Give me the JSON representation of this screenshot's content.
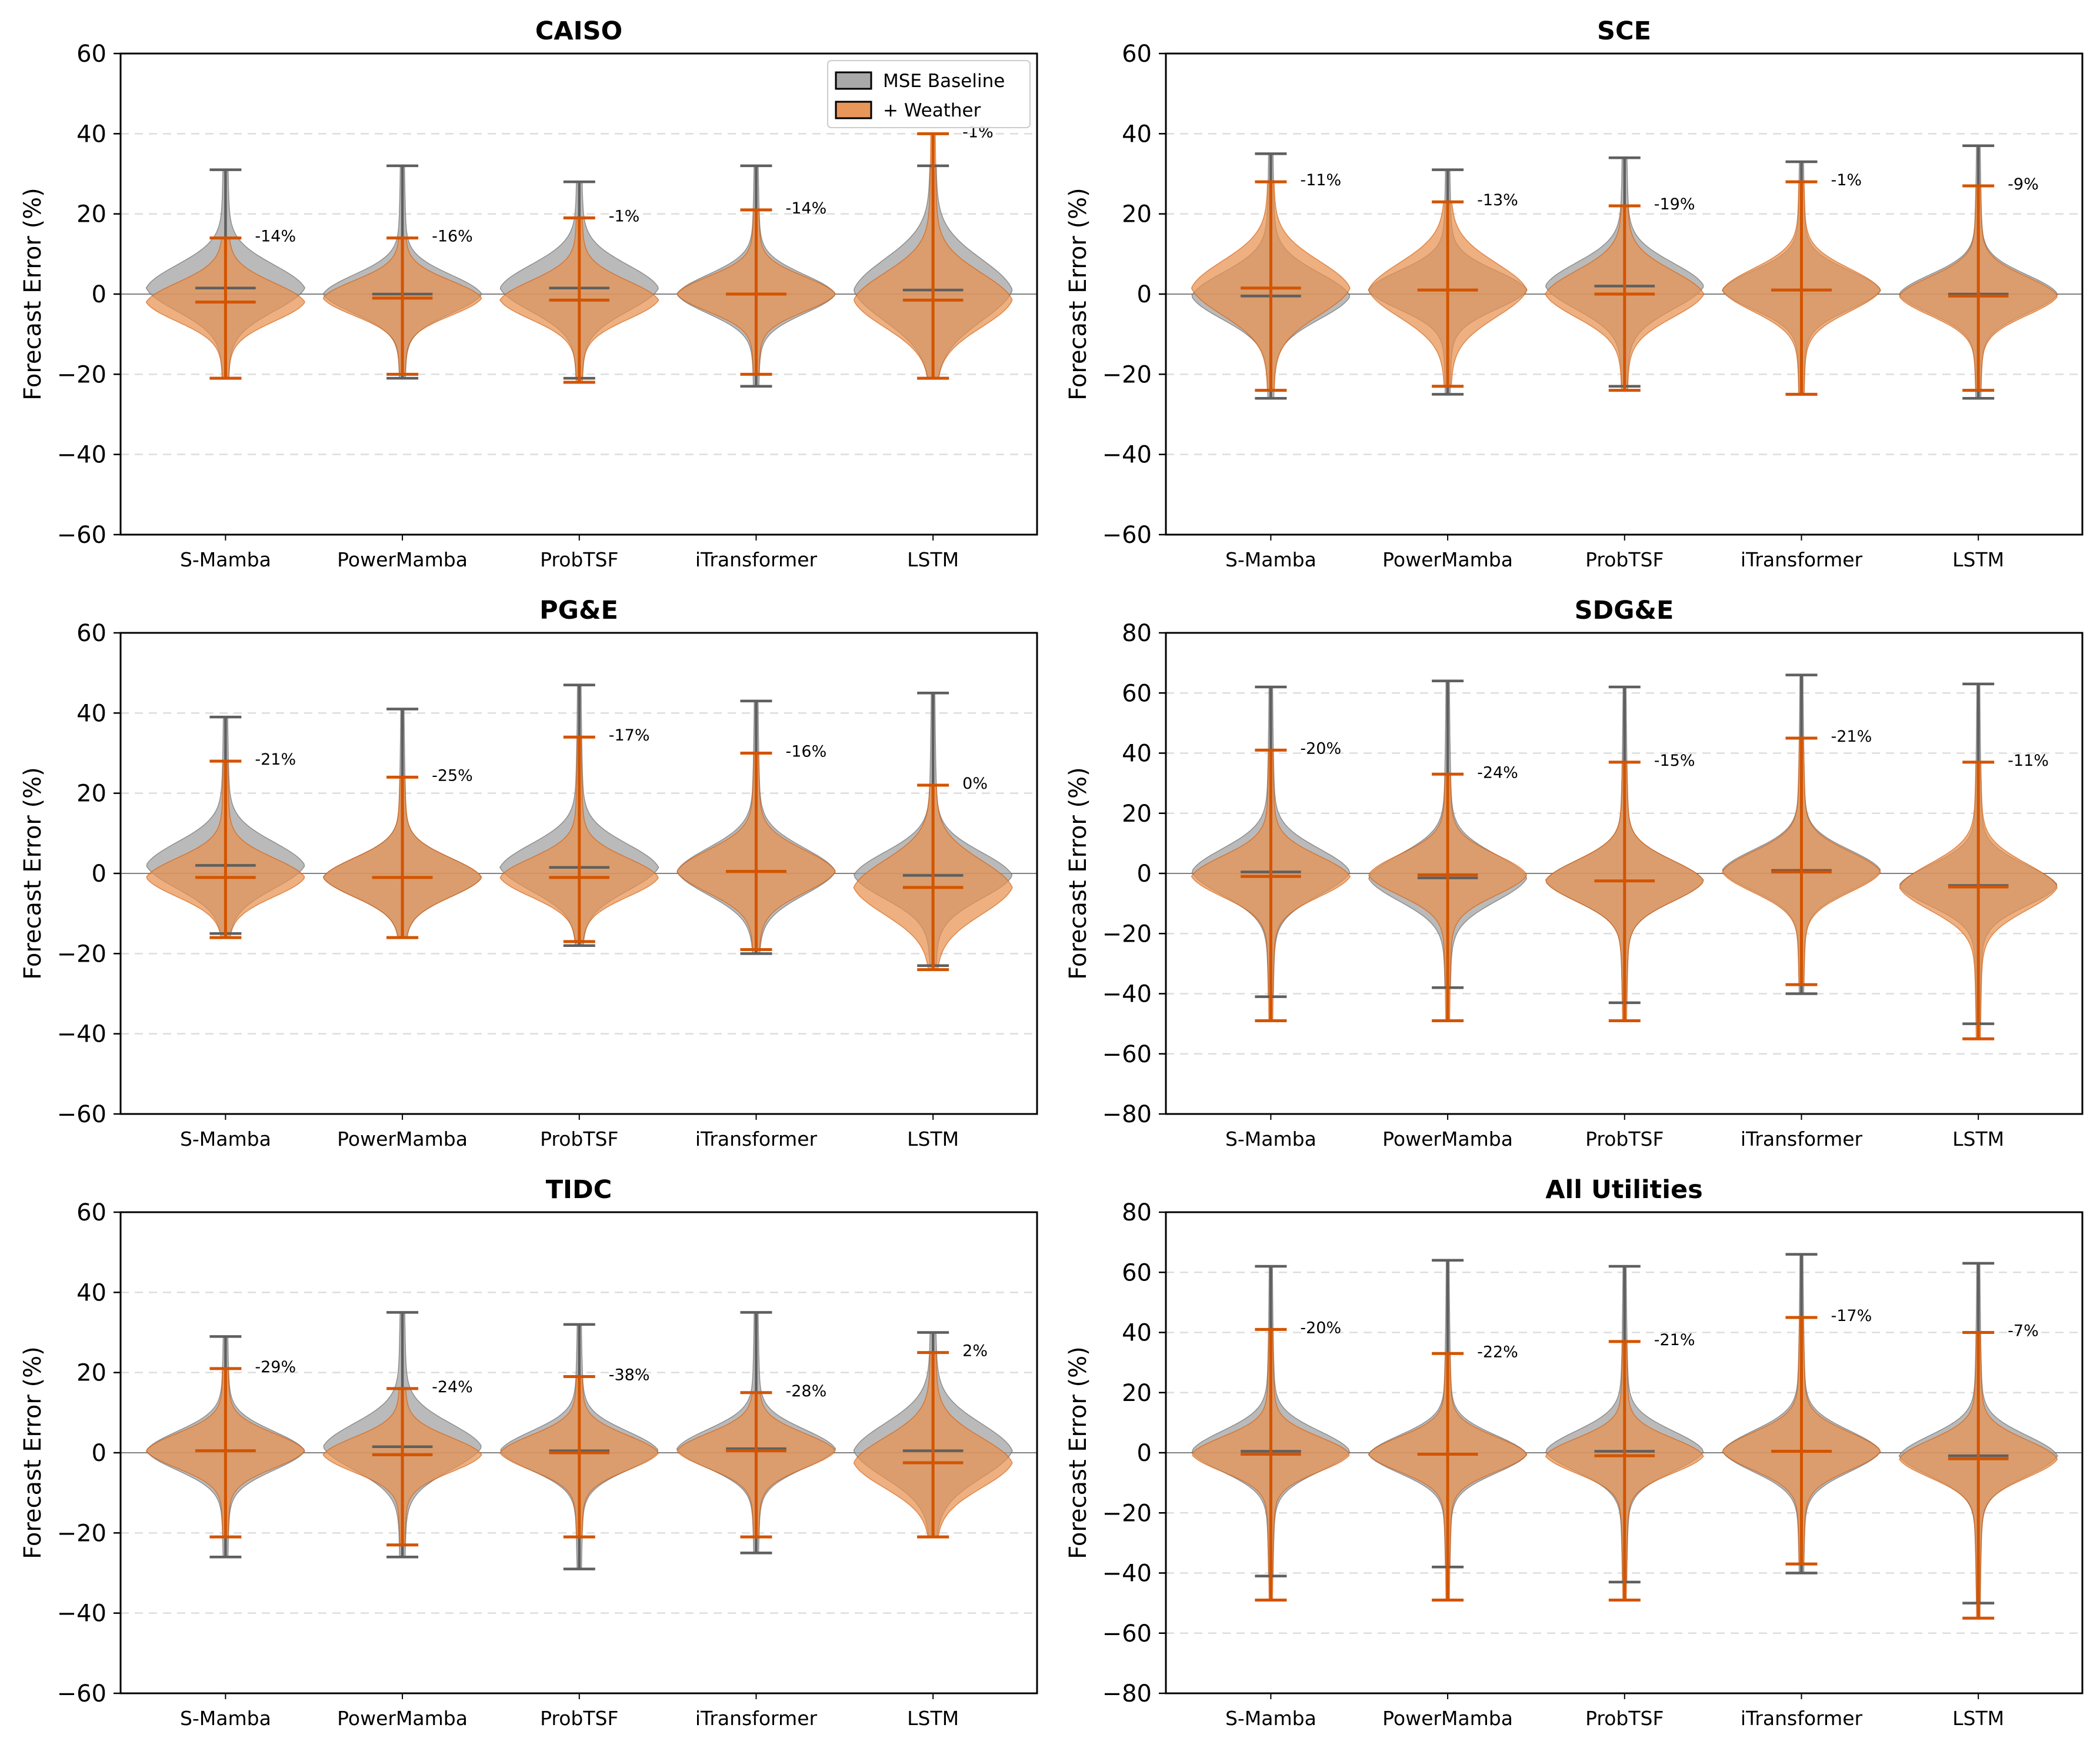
{
  "figure": {
    "legend": [
      {
        "label": "MSE Baseline",
        "color": "#a9a9a9"
      },
      {
        "label": "+ Weather",
        "color": "#e8965a"
      }
    ],
    "colors": {
      "baseline": "#a3a3a3",
      "baseline_line": "#5f5f5f",
      "weather": "#e8914f",
      "weather_line": "#d35400",
      "grid": "#dddddd",
      "zero": "#808080"
    }
  },
  "chart_data": [
    {
      "type": "violin",
      "title": "CAISO",
      "ylabel": "Forecast Error (%)",
      "ylim": [
        -60,
        60
      ],
      "yticks": [
        -60,
        -40,
        -20,
        0,
        20,
        40,
        60
      ],
      "categories": [
        "S-Mamba",
        "PowerMamba",
        "ProbTSF",
        "iTransformer",
        "LSTM"
      ],
      "series": [
        {
          "name": "MSE Baseline",
          "min": [
            -21,
            -21,
            -21,
            -23,
            -21
          ],
          "max": [
            31,
            32,
            28,
            32,
            32
          ],
          "median": [
            1.5,
            0,
            1.5,
            0,
            1
          ],
          "spread": [
            6,
            5,
            6,
            5,
            8
          ]
        },
        {
          "name": "+ Weather",
          "min": [
            -21,
            -20,
            -22,
            -20,
            -21
          ],
          "max": [
            14,
            14,
            19,
            21,
            40
          ],
          "median": [
            -2,
            -1,
            -1.5,
            0,
            -1.5
          ],
          "spread": [
            5,
            4.5,
            5,
            4.5,
            7
          ]
        }
      ],
      "annotations": [
        "-14%",
        "-16%",
        "-1%",
        "-14%",
        "-1%"
      ]
    },
    {
      "type": "violin",
      "title": "SCE",
      "ylabel": "Forecast Error (%)",
      "ylim": [
        -60,
        60
      ],
      "yticks": [
        -60,
        -40,
        -20,
        0,
        20,
        40,
        60
      ],
      "categories": [
        "S-Mamba",
        "PowerMamba",
        "ProbTSF",
        "iTransformer",
        "LSTM"
      ],
      "series": [
        {
          "name": "MSE Baseline",
          "min": [
            -26,
            -25,
            -23,
            -25,
            -26
          ],
          "max": [
            35,
            31,
            34,
            33,
            37
          ],
          "median": [
            -0.5,
            1,
            2,
            1,
            0
          ],
          "spread": [
            6,
            5,
            6,
            5,
            5
          ]
        },
        {
          "name": "+ Weather",
          "min": [
            -24,
            -23,
            -24,
            -25,
            -24
          ],
          "max": [
            28,
            23,
            22,
            28,
            27
          ],
          "median": [
            1.5,
            1,
            0,
            1,
            -0.5
          ],
          "spread": [
            7,
            7,
            6,
            5.5,
            5
          ]
        }
      ],
      "annotations": [
        "-11%",
        "-13%",
        "-19%",
        "-1%",
        "-9%"
      ]
    },
    {
      "type": "violin",
      "title": "PG&E",
      "ylabel": "Forecast Error (%)",
      "ylim": [
        -60,
        60
      ],
      "yticks": [
        -60,
        -40,
        -20,
        0,
        20,
        40,
        60
      ],
      "categories": [
        "S-Mamba",
        "PowerMamba",
        "ProbTSF",
        "iTransformer",
        "LSTM"
      ],
      "series": [
        {
          "name": "MSE Baseline",
          "min": [
            -15,
            -16,
            -18,
            -20,
            -23
          ],
          "max": [
            39,
            41,
            47,
            43,
            45
          ],
          "median": [
            2,
            -1,
            1.5,
            0.5,
            -0.5
          ],
          "spread": [
            6,
            5,
            6,
            6,
            6
          ]
        },
        {
          "name": "+ Weather",
          "min": [
            -16,
            -16,
            -17,
            -19,
            -24
          ],
          "max": [
            28,
            24,
            34,
            30,
            22
          ],
          "median": [
            -1,
            -1,
            -1,
            0.5,
            -3.5
          ],
          "spread": [
            5,
            5,
            5,
            5.5,
            7
          ]
        }
      ],
      "annotations": [
        "-21%",
        "-25%",
        "-17%",
        "-16%",
        "0%"
      ]
    },
    {
      "type": "violin",
      "title": "SDG&E",
      "ylabel": "Forecast Error (%)",
      "ylim": [
        -80,
        80
      ],
      "yticks": [
        -80,
        -60,
        -40,
        -20,
        0,
        20,
        40,
        60,
        80
      ],
      "categories": [
        "S-Mamba",
        "PowerMamba",
        "ProbTSF",
        "iTransformer",
        "LSTM"
      ],
      "series": [
        {
          "name": "MSE Baseline",
          "min": [
            -41,
            -38,
            -43,
            -40,
            -50
          ],
          "max": [
            62,
            64,
            62,
            66,
            63
          ],
          "median": [
            0.5,
            -1.5,
            -2.5,
            1,
            -4
          ],
          "spread": [
            8,
            8,
            7,
            7,
            7
          ]
        },
        {
          "name": "+ Weather",
          "min": [
            -49,
            -49,
            -49,
            -37,
            -55
          ],
          "max": [
            41,
            33,
            37,
            45,
            37
          ],
          "median": [
            -1,
            -0.5,
            -2.5,
            0.5,
            -4.5
          ],
          "spread": [
            7,
            7,
            7,
            7,
            8
          ]
        }
      ],
      "annotations": [
        "-20%",
        "-24%",
        "-15%",
        "-21%",
        "-11%"
      ]
    },
    {
      "type": "violin",
      "title": "TIDC",
      "ylabel": "Forecast Error (%)",
      "ylim": [
        -60,
        60
      ],
      "yticks": [
        -60,
        -40,
        -20,
        0,
        20,
        40,
        60
      ],
      "categories": [
        "S-Mamba",
        "PowerMamba",
        "ProbTSF",
        "iTransformer",
        "LSTM"
      ],
      "series": [
        {
          "name": "MSE Baseline",
          "min": [
            -26,
            -26,
            -29,
            -25,
            -21
          ],
          "max": [
            29,
            35,
            32,
            35,
            30
          ],
          "median": [
            0.5,
            1.5,
            0.5,
            1,
            0.5
          ],
          "spread": [
            5,
            6,
            5,
            5,
            7
          ]
        },
        {
          "name": "+ Weather",
          "min": [
            -21,
            -23,
            -21,
            -21,
            -21
          ],
          "max": [
            21,
            16,
            19,
            15,
            25
          ],
          "median": [
            0.5,
            -0.5,
            0,
            0.5,
            -2.5
          ],
          "spread": [
            4.5,
            4.5,
            4.5,
            4.5,
            6.5
          ]
        }
      ],
      "annotations": [
        "-29%",
        "-24%",
        "-38%",
        "-28%",
        "2%"
      ]
    },
    {
      "type": "violin",
      "title": "All Utilities",
      "ylabel": "Forecast Error (%)",
      "ylim": [
        -80,
        80
      ],
      "yticks": [
        -80,
        -60,
        -40,
        -20,
        0,
        20,
        40,
        60,
        80
      ],
      "categories": [
        "S-Mamba",
        "PowerMamba",
        "ProbTSF",
        "iTransformer",
        "LSTM"
      ],
      "series": [
        {
          "name": "MSE Baseline",
          "min": [
            -41,
            -38,
            -43,
            -40,
            -50
          ],
          "max": [
            62,
            64,
            62,
            66,
            63
          ],
          "median": [
            0.5,
            -0.5,
            0.5,
            0.5,
            -1
          ],
          "spread": [
            7,
            6.5,
            7,
            7,
            7
          ]
        },
        {
          "name": "+ Weather",
          "min": [
            -49,
            -49,
            -49,
            -37,
            -55
          ],
          "max": [
            41,
            33,
            37,
            45,
            40
          ],
          "median": [
            -0.5,
            -0.5,
            -1,
            0.5,
            -2
          ],
          "spread": [
            6,
            6,
            6,
            6.5,
            6.5
          ]
        }
      ],
      "annotations": [
        "-20%",
        "-22%",
        "-21%",
        "-17%",
        "-7%"
      ]
    }
  ]
}
